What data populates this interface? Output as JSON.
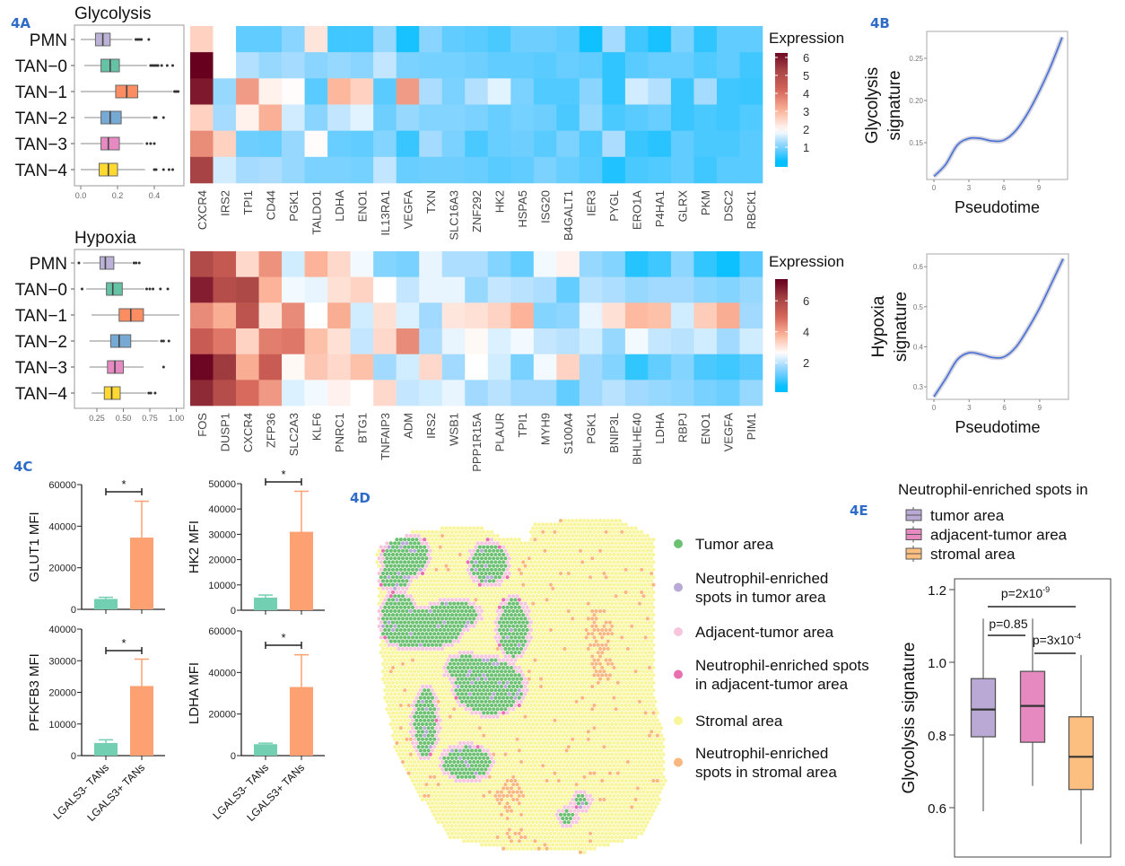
{
  "panels": {
    "a": "4A",
    "b": "4B",
    "c": "4C",
    "d": "4D",
    "e": "4E"
  },
  "colors": {
    "panel_label": "#2f6cc6",
    "curve": "#4a6fd8",
    "bar_negative": "#72cfb1",
    "bar_positive": "#fda072"
  },
  "chart_data": [
    {
      "type": "boxplot",
      "orientation": "horizontal",
      "title": "Glycolysis",
      "categories": [
        "PMN",
        "TAN−0",
        "TAN−1",
        "TAN−2",
        "TAN−3",
        "TAN−4"
      ],
      "colors": [
        "#bcb2d8",
        "#66c2a5",
        "#fc8d62",
        "#76a9d3",
        "#e78ac3",
        "#ffd92f"
      ],
      "xticks": [
        "0.0",
        "0.2",
        "0.4"
      ],
      "xlim": [
        -0.02,
        0.55
      ],
      "stats": [
        {
          "min": 0.0,
          "q1": 0.08,
          "median": 0.12,
          "q3": 0.16,
          "max": 0.28,
          "outliers": [
            0.3,
            0.31,
            0.32,
            0.33,
            0.37
          ]
        },
        {
          "min": 0.02,
          "q1": 0.11,
          "median": 0.16,
          "q3": 0.21,
          "max": 0.36,
          "outliers": [
            0.38,
            0.39,
            0.4,
            0.41,
            0.42,
            0.44,
            0.47,
            0.5
          ]
        },
        {
          "min": 0.0,
          "q1": 0.19,
          "median": 0.25,
          "q3": 0.31,
          "max": 0.5,
          "outliers": [
            0.51,
            0.52,
            0.53
          ]
        },
        {
          "min": 0.02,
          "q1": 0.11,
          "median": 0.16,
          "q3": 0.22,
          "max": 0.38,
          "outliers": [
            0.4,
            0.41,
            0.45
          ]
        },
        {
          "min": 0.0,
          "q1": 0.11,
          "median": 0.15,
          "q3": 0.21,
          "max": 0.34,
          "outliers": [
            0.36,
            0.38,
            0.4
          ]
        },
        {
          "min": 0.0,
          "q1": 0.1,
          "median": 0.15,
          "q3": 0.2,
          "max": 0.35,
          "outliers": [
            0.4,
            0.41,
            0.45,
            0.48,
            0.5
          ]
        }
      ]
    },
    {
      "type": "heatmap",
      "legend_title": "Expression",
      "colorbar_ticks": [
        "6",
        "5",
        "4",
        "3",
        "2",
        "1"
      ],
      "color_range": [
        0.2,
        6.4
      ],
      "color_mid": 1.9,
      "rows": [
        "PMN",
        "TAN-0",
        "TAN-1",
        "TAN-2",
        "TAN-3",
        "TAN-4"
      ],
      "columns": [
        "CXCR4",
        "IRS2",
        "TPI1",
        "CD44",
        "PGK1",
        "TALDO1",
        "LDHA",
        "ENO1",
        "IL13RA1",
        "VEGFA",
        "TXN",
        "SLC16A3",
        "ZNF292",
        "HK2",
        "HSPA5",
        "ISG20",
        "B4GALT1",
        "IER3",
        "PYGL",
        "ERO1A",
        "P4HA1",
        "GLRX",
        "PKM",
        "DSC2",
        "RBCK1"
      ],
      "values": [
        [
          2.6,
          1.9,
          0.8,
          0.8,
          1.1,
          2.3,
          0.6,
          0.6,
          1.2,
          0.35,
          1.1,
          0.8,
          0.75,
          0.65,
          0.9,
          0.9,
          0.8,
          0.3,
          1.3,
          0.6,
          0.35,
          1.0,
          0.5,
          0.8,
          0.8
        ],
        [
          6.4,
          1.9,
          1.4,
          1.2,
          1.3,
          1.1,
          1.2,
          1.1,
          1.5,
          1.0,
          0.95,
          0.95,
          0.9,
          0.8,
          0.8,
          0.75,
          0.85,
          0.8,
          0.5,
          0.75,
          0.85,
          0.85,
          0.7,
          0.8,
          0.6
        ],
        [
          6.0,
          1.2,
          3.4,
          2.1,
          1.95,
          0.75,
          3.0,
          2.6,
          0.75,
          3.4,
          1.35,
          1.0,
          1.4,
          1.7,
          1.0,
          0.7,
          0.7,
          1.1,
          0.5,
          1.6,
          1.4,
          0.55,
          1.3,
          0.6,
          0.55
        ],
        [
          2.6,
          1.3,
          2.1,
          3.1,
          1.6,
          1.1,
          1.5,
          1.7,
          0.9,
          1.2,
          1.05,
          1.05,
          1.0,
          0.85,
          0.95,
          0.9,
          0.65,
          1.2,
          0.65,
          0.75,
          0.85,
          0.55,
          0.65,
          0.6,
          0.7
        ],
        [
          3.6,
          2.6,
          0.9,
          0.85,
          1.2,
          1.95,
          0.85,
          0.8,
          1.05,
          0.55,
          1.3,
          1.0,
          0.65,
          0.85,
          0.9,
          0.75,
          1.0,
          0.7,
          1.35,
          0.55,
          0.45,
          0.8,
          0.65,
          0.65,
          0.75
        ],
        [
          5.3,
          1.6,
          1.3,
          1.35,
          1.2,
          1.0,
          1.0,
          0.95,
          1.5,
          0.85,
          0.9,
          0.9,
          0.85,
          0.75,
          0.8,
          1.0,
          0.85,
          0.75,
          0.4,
          0.65,
          0.7,
          0.8,
          0.6,
          0.75,
          0.75
        ]
      ]
    },
    {
      "type": "boxplot",
      "orientation": "horizontal",
      "title": "Hypoxia",
      "categories": [
        "PMN",
        "TAN−0",
        "TAN−1",
        "TAN−2",
        "TAN−3",
        "TAN−4"
      ],
      "colors": [
        "#bcb2d8",
        "#66c2a5",
        "#fc8d62",
        "#76a9d3",
        "#e78ac3",
        "#ffd92f"
      ],
      "xticks": [
        "0.25",
        "0.50",
        "0.75",
        "1.00"
      ],
      "xlim": [
        0.03,
        1.07
      ],
      "stats": [
        {
          "min": 0.12,
          "q1": 0.28,
          "median": 0.33,
          "q3": 0.41,
          "max": 0.58,
          "outliers": [
            0.08,
            0.6,
            0.62,
            0.65
          ]
        },
        {
          "min": 0.15,
          "q1": 0.34,
          "median": 0.4,
          "q3": 0.49,
          "max": 0.7,
          "outliers": [
            0.11,
            0.72,
            0.75,
            0.78,
            0.85,
            0.92
          ]
        },
        {
          "min": 0.2,
          "q1": 0.46,
          "median": 0.57,
          "q3": 0.69,
          "max": 1.03,
          "outliers": []
        },
        {
          "min": 0.18,
          "q1": 0.38,
          "median": 0.46,
          "q3": 0.57,
          "max": 0.83,
          "outliers": [
            0.86,
            0.88,
            0.93
          ]
        },
        {
          "min": 0.18,
          "q1": 0.35,
          "median": 0.42,
          "q3": 0.5,
          "max": 0.69,
          "outliers": [
            0.88
          ]
        },
        {
          "min": 0.2,
          "q1": 0.32,
          "median": 0.39,
          "q3": 0.47,
          "max": 0.72,
          "outliers": [
            0.74,
            0.76,
            0.8
          ]
        }
      ]
    },
    {
      "type": "heatmap",
      "legend_title": "Expression",
      "colorbar_ticks": [
        "6",
        "4",
        "2"
      ],
      "color_range": [
        0.4,
        7.3
      ],
      "color_mid": 2.6,
      "rows": [
        "PMN",
        "TAN-0",
        "TAN-1",
        "TAN-2",
        "TAN-3",
        "TAN-4"
      ],
      "columns": [
        "FOS",
        "DUSP1",
        "CXCR4",
        "ZFP36",
        "SLC2A3",
        "KLF6",
        "PNRC1",
        "BTG1",
        "TNFAIP3",
        "ADM",
        "IRS2",
        "WSB1",
        "PPP1R15A",
        "PLAUR",
        "TPI1",
        "MYH9",
        "S100A4",
        "PGK1",
        "BNIP3L",
        "BHLHE40",
        "LDHA",
        "RBPJ",
        "ENO1",
        "VEGFA",
        "PIM1"
      ],
      "values": [
        [
          5.9,
          5.4,
          3.2,
          4.3,
          2.2,
          3.8,
          3.2,
          2.5,
          1.5,
          1.4,
          2.4,
          1.9,
          1.9,
          1.5,
          1.2,
          2.5,
          2.8,
          1.7,
          1.5,
          0.7,
          0.9,
          1.6,
          0.8,
          0.5,
          1.1
        ],
        [
          6.8,
          5.8,
          6.0,
          3.8,
          2.5,
          2.4,
          3.1,
          3.3,
          2.6,
          2.1,
          2.4,
          2.4,
          1.7,
          2.1,
          2.0,
          1.9,
          1.2,
          2.0,
          1.9,
          1.7,
          1.8,
          1.8,
          1.6,
          1.5,
          1.7
        ],
        [
          4.4,
          3.9,
          5.6,
          3.1,
          4.4,
          2.6,
          3.9,
          2.2,
          3.1,
          2.3,
          1.8,
          3.0,
          3.1,
          3.3,
          3.8,
          1.5,
          1.6,
          2.4,
          3.1,
          3.7,
          3.6,
          2.2,
          3.4,
          3.9,
          1.8
        ],
        [
          5.3,
          4.7,
          3.3,
          4.6,
          4.7,
          3.6,
          3.1,
          2.1,
          3.2,
          4.4,
          1.9,
          2.4,
          2.7,
          2.3,
          2.5,
          2.1,
          2.0,
          2.2,
          1.7,
          2.5,
          2.1,
          2.0,
          2.2,
          1.8,
          2.2
        ],
        [
          7.2,
          6.3,
          3.9,
          5.3,
          2.7,
          3.5,
          3.2,
          3.6,
          1.8,
          2.2,
          3.2,
          1.8,
          2.6,
          2.2,
          1.4,
          2.5,
          3.3,
          1.8,
          1.5,
          0.8,
          1.2,
          1.5,
          1.0,
          0.9,
          1.1
        ],
        [
          6.6,
          5.8,
          4.9,
          4.2,
          2.3,
          2.5,
          2.8,
          2.6,
          3.2,
          2.1,
          2.2,
          2.4,
          1.8,
          2.0,
          1.8,
          1.8,
          1.2,
          1.8,
          2.0,
          1.8,
          1.7,
          1.6,
          1.4,
          1.3,
          1.7
        ]
      ]
    },
    {
      "type": "line",
      "xlabel": "Pseudotime",
      "ylabel": [
        "Glycolysis",
        "signature"
      ],
      "xticks": [
        "0",
        "3",
        "6",
        "9"
      ],
      "yticks": [
        "0.15",
        "0.20",
        "0.25"
      ],
      "x": [
        0,
        1,
        2,
        3,
        4,
        5,
        6,
        7,
        8,
        9,
        10,
        11
      ],
      "y": [
        0.11,
        0.124,
        0.147,
        0.155,
        0.155,
        0.152,
        0.153,
        0.164,
        0.184,
        0.21,
        0.24,
        0.275
      ]
    },
    {
      "type": "line",
      "xlabel": "Pseudotime",
      "ylabel": [
        "Hypoxia",
        "signature"
      ],
      "xticks": [
        "0",
        "3",
        "6",
        "9"
      ],
      "yticks": [
        "0.3",
        "0.4",
        "0.5",
        "0.6"
      ],
      "x": [
        0,
        1,
        2,
        3,
        4,
        5,
        6,
        7,
        8,
        9,
        10,
        11
      ],
      "y": [
        0.275,
        0.32,
        0.368,
        0.385,
        0.381,
        0.373,
        0.375,
        0.4,
        0.445,
        0.497,
        0.558,
        0.62
      ]
    },
    {
      "type": "bar",
      "ylabel": "GLUT1 MFI",
      "categories": [
        "LGALS3- TANs",
        "LGALS3+ TANs"
      ],
      "values": [
        5000,
        34500
      ],
      "error_upper": [
        5800,
        52000
      ],
      "ylim": [
        0,
        60000
      ],
      "yticks": [
        "0",
        "20000",
        "40000",
        "60000"
      ],
      "significance": "*"
    },
    {
      "type": "bar",
      "ylabel": "HK2 MFI",
      "categories": [
        "LGALS3- TANs",
        "LGALS3+ TANs"
      ],
      "values": [
        5000,
        31000
      ],
      "error_upper": [
        6000,
        47000
      ],
      "ylim": [
        0,
        50000
      ],
      "yticks": [
        "0",
        "10000",
        "20000",
        "30000",
        "40000",
        "50000"
      ],
      "significance": "*"
    },
    {
      "type": "bar",
      "ylabel": "PFKFB3 MFI",
      "categories": [
        "LGALS3- TANs",
        "LGALS3+ TANs"
      ],
      "values": [
        4000,
        22000
      ],
      "error_upper": [
        5000,
        30500
      ],
      "ylim": [
        0,
        40000
      ],
      "yticks": [
        "0",
        "10000",
        "20000",
        "30000",
        "40000"
      ],
      "significance": "*"
    },
    {
      "type": "bar",
      "ylabel": "LDHA MFI",
      "categories": [
        "LGALS3- TANs",
        "LGALS3+ TANs"
      ],
      "values": [
        5500,
        33000
      ],
      "error_upper": [
        6000,
        48500
      ],
      "ylim": [
        0,
        60000
      ],
      "yticks": [
        "0",
        "20000",
        "40000",
        "60000"
      ],
      "significance": "*"
    },
    {
      "type": "scatter",
      "description_kind": "spatial spot map",
      "legend": [
        {
          "label": [
            "Tumor area"
          ],
          "color": "#6cc071"
        },
        {
          "label": [
            "Neutrophil-enriched",
            "spots in tumor area"
          ],
          "color": "#b9a9d6"
        },
        {
          "label": [
            "Adjacent-tumor area"
          ],
          "color": "#f7c6dc"
        },
        {
          "label": [
            "Neutrophil-enriched spots",
            "in adjacent-tumor area"
          ],
          "color": "#e86fb0"
        },
        {
          "label": [
            "Stromal area"
          ],
          "color": "#f8f59a"
        },
        {
          "label": [
            "Neutrophil-enriched",
            "spots in stromal area"
          ],
          "color": "#f9b77e"
        }
      ]
    },
    {
      "type": "boxplot",
      "orientation": "vertical",
      "legend_title": "Neutrophil-enriched spots in",
      "categories": [
        "tumor area",
        "adjacent-tumor area",
        "stromal area"
      ],
      "colors": [
        "#b9a9d4",
        "#e589c0",
        "#fdbf80"
      ],
      "ylabel": "Glycolysis signature",
      "yticks": [
        "0.6",
        "0.8",
        "1.0",
        "1.2"
      ],
      "ylim": [
        0.48,
        1.23
      ],
      "stats": [
        {
          "min": 0.59,
          "q1": 0.795,
          "median": 0.87,
          "q3": 0.955,
          "max": 1.12
        },
        {
          "min": 0.66,
          "q1": 0.78,
          "median": 0.88,
          "q3": 0.975,
          "max": 1.12
        },
        {
          "min": 0.5,
          "q1": 0.65,
          "median": 0.74,
          "q3": 0.85,
          "max": 1.02
        }
      ],
      "comparisons": [
        {
          "pair": [
            "tumor area",
            "stromal area"
          ],
          "base": "p=2x10",
          "exp": "-9"
        },
        {
          "pair": [
            "tumor area",
            "adjacent-tumor area"
          ],
          "base": "p=0.85",
          "exp": ""
        },
        {
          "pair": [
            "adjacent-tumor area",
            "stromal area"
          ],
          "base": "p=3x10",
          "exp": "-4"
        }
      ]
    }
  ]
}
